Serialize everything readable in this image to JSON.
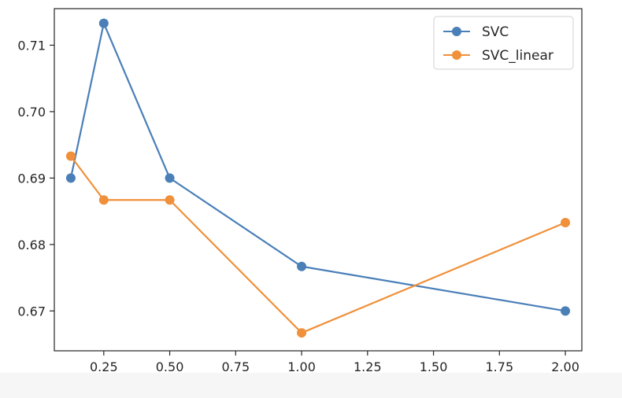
{
  "chart_data": {
    "type": "line",
    "title": "",
    "xlabel": "",
    "ylabel": "",
    "xlim": [
      0.0625,
      2.0625
    ],
    "ylim": [
      0.664,
      0.7155
    ],
    "x_ticks": [
      0.25,
      0.5,
      0.75,
      1.0,
      1.25,
      1.5,
      1.75,
      2.0
    ],
    "x_tick_labels": [
      "0.25",
      "0.50",
      "0.75",
      "1.00",
      "1.25",
      "1.50",
      "1.75",
      "2.00"
    ],
    "y_ticks": [
      0.67,
      0.68,
      0.69,
      0.7,
      0.71
    ],
    "y_tick_labels": [
      "0.67",
      "0.68",
      "0.69",
      "0.70",
      "0.71"
    ],
    "grid": false,
    "legend_position": "top-right",
    "series": [
      {
        "name": "SVC",
        "color": "#4a7fb8",
        "marker": "circle",
        "x": [
          0.125,
          0.25,
          0.5,
          1.0,
          2.0
        ],
        "y": [
          0.69,
          0.7133,
          0.69,
          0.6767,
          0.67
        ]
      },
      {
        "name": "SVC_linear",
        "color": "#f0903a",
        "marker": "circle",
        "x": [
          0.125,
          0.25,
          0.5,
          1.0,
          2.0
        ],
        "y": [
          0.6933,
          0.6867,
          0.6867,
          0.6667,
          0.6833
        ]
      }
    ]
  }
}
